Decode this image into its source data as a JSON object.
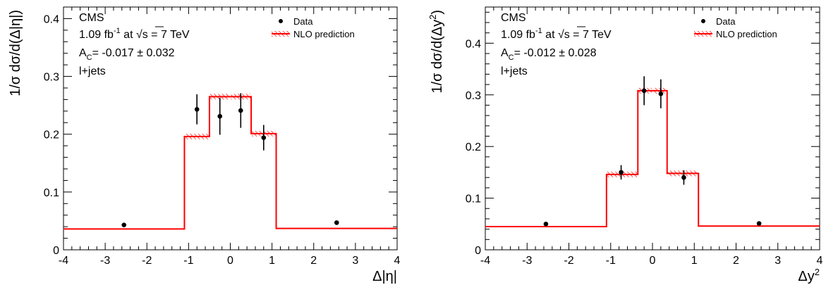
{
  "chart_data": [
    {
      "type": "step",
      "header": {
        "experiment": "CMS",
        "lumi_value": "1.09 fb",
        "lumi_sup": "-1",
        "lumi_at": " at ",
        "sqrt": "√",
        "s_label": "s",
        "energy": " = 7 TeV",
        "ac_prefix": "A",
        "ac_sub": "C",
        "ac_value": "= -0.017 ± 0.032",
        "channel": "l+jets"
      },
      "legend": {
        "data_label": "Data",
        "prediction_label": "NLO prediction"
      },
      "xlabel_parts": [
        "Δ|η|"
      ],
      "ylabel_parts": [
        "1/σ dσ/d(Δ|η|)"
      ],
      "xlim": [
        -4,
        4
      ],
      "ylim": [
        0,
        0.42
      ],
      "xticks": [
        "-4",
        "-3",
        "-2",
        "-1",
        "0",
        "1",
        "2",
        "3",
        "4"
      ],
      "yticks": [
        "0",
        "0.1",
        "0.2",
        "0.3",
        "0.4"
      ],
      "prediction": {
        "edges": [
          -4.0,
          -1.1,
          -0.5,
          0.0,
          0.5,
          1.1,
          4.0
        ],
        "values": [
          0.036,
          0.196,
          0.265,
          0.265,
          0.201,
          0.037
        ]
      },
      "data_points": {
        "x": [
          -2.55,
          -0.8,
          -0.25,
          0.25,
          0.8,
          2.55
        ],
        "y": [
          0.043,
          0.243,
          0.231,
          0.241,
          0.194,
          0.047
        ],
        "err": [
          0.0,
          0.026,
          0.032,
          0.03,
          0.022,
          0.0
        ]
      }
    },
    {
      "type": "step",
      "header": {
        "experiment": "CMS",
        "lumi_value": "1.09 fb",
        "lumi_sup": "-1",
        "lumi_at": " at ",
        "sqrt": "√",
        "s_label": "s",
        "energy": " = 7 TeV",
        "ac_prefix": "A",
        "ac_sub": "C",
        "ac_value": "= -0.012 ± 0.028",
        "channel": "l+jets"
      },
      "legend": {
        "data_label": "Data",
        "prediction_label": "NLO prediction"
      },
      "xlabel_parts": [
        "Δy",
        "2"
      ],
      "ylabel_parts": [
        "1/σ dσ/d(Δy",
        "2",
        ")"
      ],
      "xlim": [
        -4,
        4
      ],
      "ylim": [
        0,
        0.47
      ],
      "xticks": [
        "-4",
        "-3",
        "-2",
        "-1",
        "0",
        "1",
        "2",
        "3",
        "4"
      ],
      "yticks": [
        "0",
        "0.1",
        "0.2",
        "0.3",
        "0.4"
      ],
      "prediction": {
        "edges": [
          -4.0,
          -1.1,
          -0.35,
          0.0,
          0.35,
          1.1,
          4.0
        ],
        "values": [
          0.045,
          0.146,
          0.308,
          0.308,
          0.148,
          0.046
        ]
      },
      "data_points": {
        "x": [
          -2.55,
          -0.75,
          -0.2,
          0.2,
          0.75,
          2.55
        ],
        "y": [
          0.05,
          0.15,
          0.308,
          0.302,
          0.14,
          0.051
        ],
        "err": [
          0.0,
          0.014,
          0.028,
          0.028,
          0.014,
          0.0
        ]
      }
    }
  ]
}
